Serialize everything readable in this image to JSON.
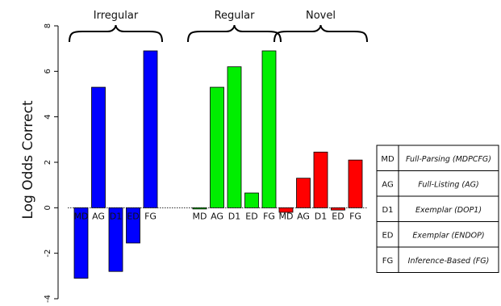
{
  "chart_data": {
    "type": "bar",
    "ylabel": "Log Odds Correct",
    "ylim": [
      -4,
      8
    ],
    "yticks": [
      -4,
      -2,
      0,
      2,
      4,
      6,
      8
    ],
    "groups": [
      {
        "name": "Irregular",
        "color": "#0000ff",
        "label_color": "#ffffff",
        "categories": [
          "MD",
          "AG",
          "D1",
          "ED",
          "FG"
        ],
        "values": [
          -3.1,
          5.3,
          -2.8,
          -1.55,
          6.9
        ]
      },
      {
        "name": "Regular",
        "color": "#00ee00",
        "label_color": "#111111",
        "categories": [
          "MD",
          "AG",
          "D1",
          "ED",
          "FG"
        ],
        "values": [
          -0.05,
          5.3,
          6.2,
          0.65,
          6.9
        ]
      },
      {
        "name": "Novel",
        "color": "#ff0000",
        "label_color": "#111111",
        "categories": [
          "MD",
          "AG",
          "D1",
          "ED",
          "FG"
        ],
        "values": [
          -0.2,
          1.3,
          2.45,
          -0.1,
          2.1
        ]
      }
    ],
    "legend": [
      {
        "key": "MD",
        "description": "Full-Parsing (MDPCFG)"
      },
      {
        "key": "AG",
        "description": "Full-Listing (AG)"
      },
      {
        "key": "D1",
        "description": "Exemplar (DOP1)"
      },
      {
        "key": "ED",
        "description": "Exemplar (ENDOP)"
      },
      {
        "key": "FG",
        "description": "Inference-Based (FG)"
      }
    ],
    "legend_position": "right"
  }
}
